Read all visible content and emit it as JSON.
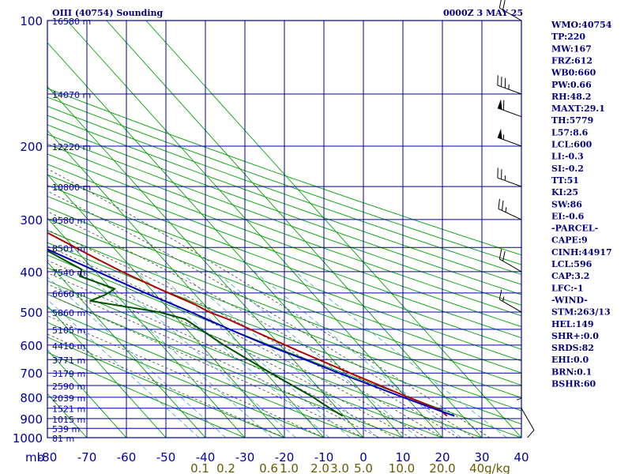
{
  "header": {
    "station_title": "OIII (40754) Sounding",
    "time_label": "0000Z  3 MAY 25"
  },
  "indices": [
    "WMO:40754",
    "TP:220",
    "MW:167",
    "FRZ:612",
    "WB0:660",
    "PW:0.66",
    "RH:48.2",
    "MAXT:29.1",
    "TH:5779",
    "L57:8.6",
    "LCL:600",
    "LI:-0.3",
    "SI:-0.2",
    "TT:51",
    "KI:25",
    "SW:86",
    "EI:-0.6",
    "-PARCEL-",
    "CAPE:9",
    "CINH:44917",
    "LCL:596",
    "CAP:3.2",
    "LFC:-1",
    "-WIND-",
    "STM:263/13",
    "HEL:149",
    "SHR+:0.0",
    "SRDS:82",
    "EHI:0.0",
    "BRN:0.1",
    "BSHR:60"
  ],
  "colors": {
    "isobar": "#0000a0",
    "dry_adiabat": "#00a000",
    "temperature": "#b00000",
    "dewpoint": "#005000",
    "parcel": "#0000c0",
    "moist_adiabat": "#404040",
    "mixing_ratio": "#40a0c0"
  },
  "chart_data": {
    "type": "line",
    "title": "OIII (40754) Sounding",
    "x_axis_label": "mb",
    "xlim": [
      -80,
      40
    ],
    "ylim": [
      1000,
      100
    ],
    "y_scale": "log-pressure",
    "grid": true,
    "x_ticks": [
      "-80",
      "-70",
      "-60",
      "-50",
      "-40",
      "-30",
      "-20",
      "-10",
      "0",
      "10",
      "20",
      "30",
      "40"
    ],
    "y_ticks": [
      {
        "p": 100,
        "label": "100",
        "height": "16580 m"
      },
      {
        "p": 150,
        "label": "",
        "height": "14070 m"
      },
      {
        "p": 200,
        "label": "200",
        "height": "12220 m"
      },
      {
        "p": 250,
        "label": "",
        "height": "10800 m"
      },
      {
        "p": 300,
        "label": "300",
        "height": "9580 m"
      },
      {
        "p": 350,
        "label": "",
        "height": "8501 m"
      },
      {
        "p": 400,
        "label": "400",
        "height": "7540 m"
      },
      {
        "p": 450,
        "label": "",
        "height": "6660 m"
      },
      {
        "p": 500,
        "label": "500",
        "height": "5860 m"
      },
      {
        "p": 550,
        "label": "",
        "height": "5105 m"
      },
      {
        "p": 600,
        "label": "600",
        "height": "4410 m"
      },
      {
        "p": 650,
        "label": "",
        "height": "3771 m"
      },
      {
        "p": 700,
        "label": "700",
        "height": "3179 m"
      },
      {
        "p": 750,
        "label": "",
        "height": "2590 m"
      },
      {
        "p": 800,
        "label": "800",
        "height": "2039 m"
      },
      {
        "p": 850,
        "label": "",
        "height": "1521 m"
      },
      {
        "p": 900,
        "label": "900",
        "height": "1015 m"
      },
      {
        "p": 950,
        "label": "",
        "height": "539 m"
      },
      {
        "p": 1000,
        "label": "1000",
        "height": "81 m"
      }
    ],
    "mixing_ratio_labels": [
      {
        "label": "0.1",
        "t": -41.4
      },
      {
        "label": "0.2",
        "t": -34.8
      },
      {
        "label": "0.6",
        "t": -24.0
      },
      {
        "label": "1.0",
        "t": -18.8
      },
      {
        "label": "2.0",
        "t": -11.0
      },
      {
        "label": "3.0",
        "t": -6.0
      },
      {
        "label": "5.0",
        "t": 0.0
      },
      {
        "label": "10.0",
        "t": 9.7
      },
      {
        "label": "20.0",
        "t": 20.0
      },
      {
        "label": "40g/kg",
        "t": 32.0
      }
    ],
    "series": [
      {
        "name": "",
        "role": "temperature",
        "points": [
          [
            887,
            26.1
          ],
          [
            860,
            25.8
          ],
          [
            815,
            22.0
          ],
          [
            800,
            20.5
          ],
          [
            720,
            13.3
          ],
          [
            700,
            11.3
          ],
          [
            620,
            3.4
          ],
          [
            560,
            -2.9
          ],
          [
            520,
            -7.3
          ],
          [
            500,
            -10.4
          ],
          [
            480,
            -12.2
          ],
          [
            445,
            -17.1
          ],
          [
            400,
            -23.3
          ],
          [
            370,
            -27.1
          ],
          [
            340,
            -30.9
          ],
          [
            300,
            -36.7
          ],
          [
            260,
            -44.7
          ],
          [
            230,
            -49.7
          ],
          [
            220,
            -51.3
          ],
          [
            210,
            -49.5
          ],
          [
            200,
            -50.5
          ],
          [
            185,
            -48.1
          ],
          [
            170,
            -47.7
          ],
          [
            165,
            -47.5
          ],
          [
            150,
            -52.3
          ],
          [
            120,
            -62.5
          ],
          [
            100,
            -70.5
          ]
        ]
      },
      {
        "name": "",
        "role": "dewpoint",
        "points": [
          [
            887,
            -0.3
          ],
          [
            870,
            -1.0
          ],
          [
            830,
            -2.5
          ],
          [
            800,
            -3.5
          ],
          [
            760,
            -5.5
          ],
          [
            700,
            -8.7
          ],
          [
            600,
            -14.2
          ],
          [
            520,
            -18.1
          ],
          [
            500,
            -23.0
          ],
          [
            470,
            -38.0
          ],
          [
            455,
            -33.0
          ],
          [
            440,
            -29.0
          ],
          [
            410,
            -35.0
          ],
          [
            395,
            -33.0
          ],
          [
            360,
            -37.0
          ],
          [
            320,
            -43.0
          ],
          [
            270,
            -54.0
          ],
          [
            240,
            -60.0
          ],
          [
            220,
            -62.5
          ],
          [
            200,
            -64.7
          ],
          [
            180,
            -61.5
          ],
          [
            160,
            -66.0
          ],
          [
            130,
            -75.0
          ],
          [
            110,
            -80.0
          ]
        ]
      },
      {
        "name": "",
        "role": "parcel",
        "points": [
          [
            887,
            28.0
          ],
          [
            850,
            24.2
          ],
          [
            800,
            19.2
          ],
          [
            750,
            14.1
          ],
          [
            700,
            8.5
          ],
          [
            650,
            3.0
          ],
          [
            600,
            -3.3
          ],
          [
            550,
            -9.2
          ],
          [
            500,
            -15.0
          ],
          [
            450,
            -22.2
          ],
          [
            400,
            -29.5
          ],
          [
            350,
            -37.7
          ],
          [
            300,
            -47.0
          ],
          [
            250,
            -57.0
          ],
          [
            200,
            -68.7
          ],
          [
            170,
            -78.7
          ]
        ]
      }
    ],
    "wind_barbs": [
      {
        "p": 100,
        "dir": 300,
        "kt": 20
      },
      {
        "p": 150,
        "dir": 290,
        "kt": 35
      },
      {
        "p": 170,
        "dir": 290,
        "kt": 60
      },
      {
        "p": 200,
        "dir": 290,
        "kt": 55
      },
      {
        "p": 250,
        "dir": 290,
        "kt": 25
      },
      {
        "p": 300,
        "dir": 295,
        "kt": 25
      },
      {
        "p": 400,
        "dir": 300,
        "kt": 20
      },
      {
        "p": 500,
        "dir": 300,
        "kt": 15
      },
      {
        "p": 700,
        "dir": 180,
        "kt": 5
      },
      {
        "p": 850,
        "dir": 150,
        "kt": 10
      }
    ]
  }
}
